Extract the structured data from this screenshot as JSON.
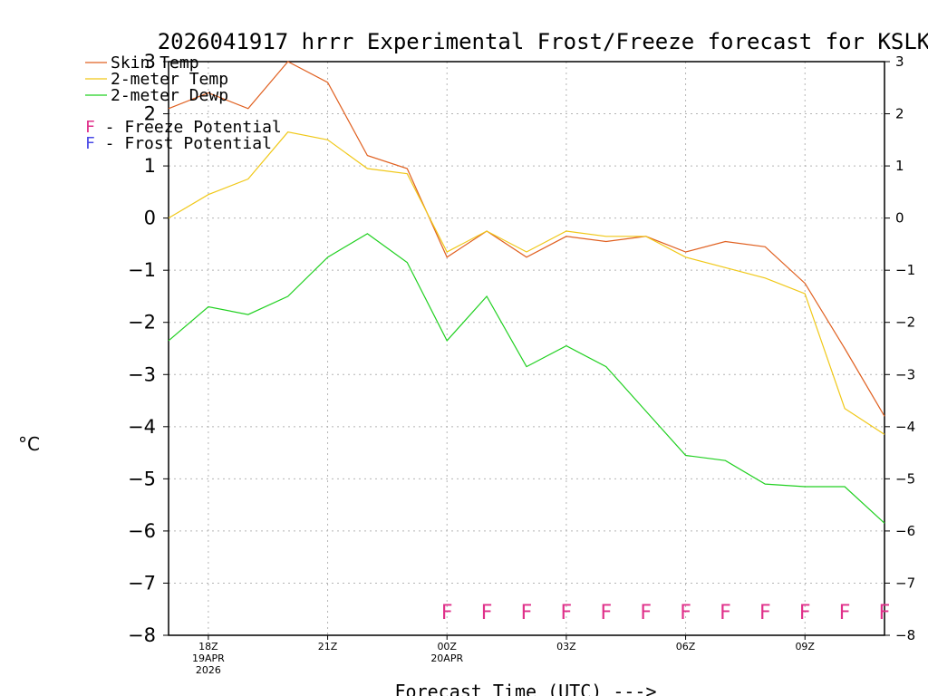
{
  "chart_data": {
    "type": "line",
    "title": "2026041917 hrrr Experimental Frost/Freeze forecast for KSLK",
    "xlabel": "Forecast Time (UTC) --->",
    "ylabel": "°C",
    "ylim": [
      -8,
      3
    ],
    "yticks": [
      3,
      2,
      1,
      0,
      -1,
      -2,
      -3,
      -4,
      -5,
      -6,
      -7,
      -8
    ],
    "grid": true,
    "x_hours": [
      17,
      18,
      19,
      20,
      21,
      22,
      23,
      24,
      25,
      26,
      27,
      28,
      29,
      30,
      31,
      32,
      33,
      34,
      35
    ],
    "x_ticks": [
      {
        "hour": 18,
        "lines": [
          "18Z",
          "19APR",
          "2026"
        ]
      },
      {
        "hour": 21,
        "lines": [
          "21Z"
        ]
      },
      {
        "hour": 24,
        "lines": [
          "00Z",
          "20APR"
        ]
      },
      {
        "hour": 27,
        "lines": [
          "03Z"
        ]
      },
      {
        "hour": 30,
        "lines": [
          "06Z"
        ]
      },
      {
        "hour": 33,
        "lines": [
          "09Z"
        ]
      }
    ],
    "series": [
      {
        "name": "Skin Temp",
        "color": "#e06020",
        "values": [
          2.1,
          2.4,
          2.1,
          3.0,
          2.6,
          1.2,
          0.95,
          -0.75,
          -0.25,
          -0.75,
          -0.35,
          -0.45,
          -0.35,
          -0.65,
          -0.45,
          -0.55,
          -1.25,
          -2.5,
          -3.8
        ]
      },
      {
        "name": "2-meter Temp",
        "color": "#f0c818",
        "values": [
          0.0,
          0.45,
          0.75,
          1.65,
          1.5,
          0.95,
          0.85,
          -0.65,
          -0.25,
          -0.65,
          -0.25,
          -0.35,
          -0.35,
          -0.75,
          -0.95,
          -1.15,
          -1.45,
          -3.65,
          -4.15
        ]
      },
      {
        "name": "2-meter Dewp",
        "color": "#20d020",
        "values": [
          -2.35,
          -1.7,
          -1.85,
          -1.5,
          -0.75,
          -0.3,
          -0.85,
          -2.35,
          -1.5,
          -2.85,
          -2.45,
          -2.85,
          -3.7,
          -4.55,
          -4.65,
          -5.1,
          -5.15,
          -5.15,
          -5.85
        ]
      }
    ],
    "legend": {
      "placement": "top-left",
      "flag_entries": [
        {
          "symbol": "F",
          "label": " - Freeze Potential",
          "color": "#e0308a"
        },
        {
          "symbol": "F",
          "label": " - Frost Potential",
          "color": "#4a4ae6"
        }
      ]
    },
    "flags": {
      "symbol": "F",
      "color": "#e0308a",
      "value": -7.55,
      "hours": [
        24,
        25,
        26,
        27,
        28,
        29,
        30,
        31,
        32,
        33,
        34,
        35
      ]
    }
  }
}
